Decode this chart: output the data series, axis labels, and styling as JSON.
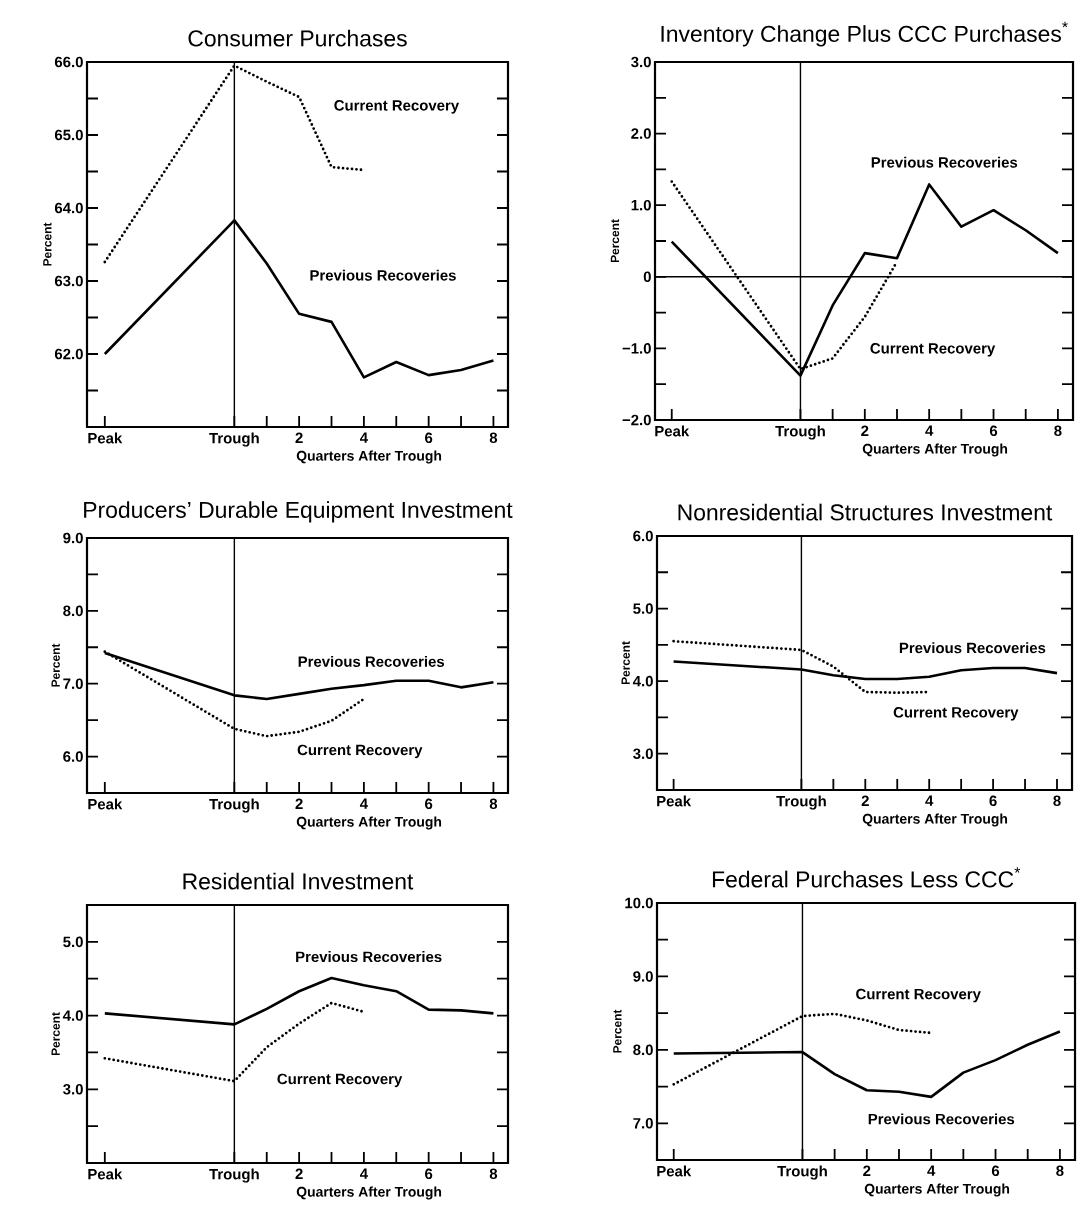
{
  "chart_data": [
    {
      "type": "line",
      "title": "Consumer Purchases",
      "xlabel": "Quarters After Trough",
      "ylabel": "Percent",
      "x": [
        -4,
        0,
        1,
        2,
        3,
        4,
        5,
        6,
        7,
        8
      ],
      "xlim": [
        -4.55,
        8.45
      ],
      "xticks": [
        {
          "value": -4,
          "label": "Peak"
        },
        {
          "value": 0,
          "label": "Trough"
        },
        {
          "value": 1,
          "label": null
        },
        2,
        {
          "value": 3,
          "label": null
        },
        4,
        {
          "value": 5,
          "label": null
        },
        6,
        {
          "value": 7,
          "label": null
        },
        8
      ],
      "ylim": [
        61.0,
        66.0
      ],
      "yticks": [
        {
          "value": 61.5,
          "label": null
        },
        {
          "value": 62,
          "label": "62.0"
        },
        {
          "value": 62.5,
          "label": null
        },
        {
          "value": 63,
          "label": "63.0"
        },
        {
          "value": 63.5,
          "label": null
        },
        {
          "value": 64,
          "label": "64.0"
        },
        {
          "value": 64.5,
          "label": null
        },
        {
          "value": 65,
          "label": "65.0"
        },
        {
          "value": 65.5,
          "label": null
        },
        {
          "value": 66,
          "label": "66.0"
        }
      ],
      "ref_lines": [
        {
          "axis": "x",
          "value": 0
        }
      ],
      "marker": "none",
      "series": [
        {
          "name": "Current Recovery",
          "color": "#000000",
          "line_style": "dotted",
          "values": [
            63.26,
            65.95,
            65.73,
            65.52,
            64.56,
            64.52,
            null,
            null,
            null,
            null
          ]
        },
        {
          "name": "Previous Recoveries",
          "color": "#000000",
          "line_style": "solid",
          "values": [
            62.0,
            63.83,
            63.24,
            62.55,
            62.44,
            61.68,
            61.89,
            61.71,
            61.78,
            61.91
          ]
        }
      ]
    },
    {
      "type": "line",
      "title": "Inventory Change Plus CCC Purchases$^{*}$",
      "xlabel": "Quarters After Trough",
      "ylabel": "Percent",
      "x": [
        -4,
        0,
        1,
        2,
        3,
        4,
        5,
        6,
        7,
        8
      ],
      "xlim": [
        -4.52,
        8.47
      ],
      "xticks": [
        {
          "value": -4,
          "label": "Peak"
        },
        {
          "value": 0,
          "label": "Trough"
        },
        {
          "value": 1,
          "label": null
        },
        2,
        {
          "value": 3,
          "label": null
        },
        4,
        {
          "value": 5,
          "label": null
        },
        6,
        {
          "value": 7,
          "label": null
        },
        8
      ],
      "ylim": [
        -2.0,
        3.0
      ],
      "yticks": [
        {
          "value": -2,
          "label": "−2.0"
        },
        {
          "value": -1.5,
          "label": null
        },
        {
          "value": -1,
          "label": "−1.0"
        },
        {
          "value": -0.5,
          "label": null
        },
        0,
        {
          "value": 0.5,
          "label": null
        },
        {
          "value": 1,
          "label": "1.0"
        },
        {
          "value": 1.5,
          "label": null
        },
        {
          "value": 2,
          "label": "2.0"
        },
        {
          "value": 2.5,
          "label": null
        },
        {
          "value": 3,
          "label": "3.0"
        }
      ],
      "ref_lines": [
        {
          "axis": "x",
          "value": 0
        },
        {
          "axis": "y",
          "value": 0
        }
      ],
      "marker": "none",
      "series": [
        {
          "name": "Current Recovery",
          "color": "#000000",
          "line_style": "dotted",
          "values": [
            1.33,
            -1.29,
            -1.14,
            -0.56,
            0.21,
            null,
            null,
            null,
            null,
            null
          ]
        },
        {
          "name": "Previous Recoveries",
          "color": "#000000",
          "line_style": "solid",
          "values": [
            0.49,
            -1.38,
            -0.4,
            0.33,
            0.26,
            1.29,
            0.7,
            0.93,
            0.65,
            0.33
          ]
        }
      ]
    },
    {
      "type": "line",
      "title": "Producers’ Durable Equipment Investment",
      "xlabel": "Quarters After Trough",
      "ylabel": "Percent",
      "x": [
        -4,
        0,
        1,
        2,
        3,
        4,
        5,
        6,
        7,
        8
      ],
      "xlim": [
        -4.55,
        8.45
      ],
      "xticks": [
        {
          "value": -4,
          "label": "Peak"
        },
        {
          "value": 0,
          "label": "Trough"
        },
        {
          "value": 1,
          "label": null
        },
        2,
        {
          "value": 3,
          "label": null
        },
        4,
        {
          "value": 5,
          "label": null
        },
        6,
        {
          "value": 7,
          "label": null
        },
        8
      ],
      "ylim": [
        5.5,
        9.0
      ],
      "yticks": [
        {
          "value": 6,
          "label": "6.0"
        },
        {
          "value": 6.5,
          "label": null
        },
        {
          "value": 7,
          "label": "7.0"
        },
        {
          "value": 7.5,
          "label": null
        },
        {
          "value": 8,
          "label": "8.0"
        },
        {
          "value": 8.5,
          "label": null
        },
        {
          "value": 9,
          "label": "9.0"
        }
      ],
      "ref_lines": [
        {
          "axis": "x",
          "value": 0
        }
      ],
      "marker": "none",
      "series": [
        {
          "name": "Current Recovery",
          "color": "#000000",
          "line_style": "dotted",
          "values": [
            7.44,
            6.38,
            6.28,
            6.34,
            6.49,
            6.79,
            null,
            null,
            null,
            null
          ]
        },
        {
          "name": "Previous Recoveries",
          "color": "#000000",
          "line_style": "solid",
          "values": [
            7.42,
            6.84,
            6.79,
            6.86,
            6.93,
            6.98,
            7.04,
            7.04,
            6.95,
            7.02
          ]
        }
      ]
    },
    {
      "type": "line",
      "title": "Nonresidential Structures Investment",
      "xlabel": "Quarters After Trough",
      "ylabel": "Percent",
      "x": [
        -4,
        0,
        1,
        2,
        3,
        4,
        5,
        6,
        7,
        8
      ],
      "xlim": [
        -4.52,
        8.47
      ],
      "xticks": [
        {
          "value": -4,
          "label": "Peak"
        },
        {
          "value": 0,
          "label": "Trough"
        },
        {
          "value": 1,
          "label": null
        },
        2,
        {
          "value": 3,
          "label": null
        },
        4,
        {
          "value": 5,
          "label": null
        },
        6,
        {
          "value": 7,
          "label": null
        },
        8
      ],
      "ylim": [
        2.5,
        6.0
      ],
      "yticks": [
        {
          "value": 3,
          "label": "3.0"
        },
        {
          "value": 3.5,
          "label": null
        },
        {
          "value": 4,
          "label": "4.0"
        },
        {
          "value": 4.5,
          "label": null
        },
        {
          "value": 5,
          "label": "5.0"
        },
        {
          "value": 5.5,
          "label": null
        },
        {
          "value": 6,
          "label": "6.0"
        }
      ],
      "ref_lines": [
        {
          "axis": "x",
          "value": 0
        }
      ],
      "marker": "none",
      "series": [
        {
          "name": "Current Recovery",
          "color": "#000000",
          "line_style": "dotted",
          "values": [
            4.55,
            4.43,
            4.2,
            3.85,
            3.84,
            3.85,
            null,
            null,
            null,
            null
          ]
        },
        {
          "name": "Previous Recoveries",
          "color": "#000000",
          "line_style": "solid",
          "values": [
            4.27,
            4.16,
            4.08,
            4.03,
            4.03,
            4.06,
            4.15,
            4.18,
            4.18,
            4.11
          ]
        }
      ]
    },
    {
      "type": "line",
      "title": "Residential Investment",
      "xlabel": "Quarters After Trough",
      "ylabel": "Percent",
      "x": [
        -4,
        0,
        1,
        2,
        3,
        4,
        5,
        6,
        7,
        8
      ],
      "xlim": [
        -4.55,
        8.45
      ],
      "xticks": [
        {
          "value": -4,
          "label": "Peak"
        },
        {
          "value": 0,
          "label": "Trough"
        },
        {
          "value": 1,
          "label": null
        },
        2,
        {
          "value": 3,
          "label": null
        },
        4,
        {
          "value": 5,
          "label": null
        },
        6,
        {
          "value": 7,
          "label": null
        },
        8
      ],
      "ylim": [
        2.0,
        5.5
      ],
      "yticks": [
        {
          "value": 2.5,
          "label": null
        },
        {
          "value": 3,
          "label": "3.0"
        },
        {
          "value": 3.5,
          "label": null
        },
        {
          "value": 4,
          "label": "4.0"
        },
        {
          "value": 4.5,
          "label": null
        },
        {
          "value": 5,
          "label": "5.0"
        }
      ],
      "ref_lines": [
        {
          "axis": "x",
          "value": 0
        }
      ],
      "marker": "none",
      "series": [
        {
          "name": "Current Recovery",
          "color": "#000000",
          "line_style": "dotted",
          "values": [
            3.42,
            3.11,
            3.57,
            3.89,
            4.17,
            4.05,
            null,
            null,
            null,
            null
          ]
        },
        {
          "name": "Previous Recoveries",
          "color": "#000000",
          "line_style": "solid",
          "values": [
            4.03,
            3.88,
            4.09,
            4.33,
            4.51,
            4.41,
            4.33,
            4.08,
            4.07,
            4.03
          ]
        }
      ]
    },
    {
      "type": "line",
      "title": "Federal Purchases Less CCC$^{*}$",
      "xlabel": "Quarters After Trough",
      "ylabel": "Percent",
      "x": [
        -4,
        0,
        1,
        2,
        3,
        4,
        5,
        6,
        7,
        8
      ],
      "xlim": [
        -4.52,
        8.47
      ],
      "xticks": [
        {
          "value": -4,
          "label": "Peak"
        },
        {
          "value": 0,
          "label": "Trough"
        },
        {
          "value": 1,
          "label": null
        },
        2,
        {
          "value": 3,
          "label": null
        },
        4,
        {
          "value": 5,
          "label": null
        },
        6,
        {
          "value": 7,
          "label": null
        },
        8
      ],
      "ylim": [
        6.5,
        10.0
      ],
      "yticks": [
        {
          "value": 7,
          "label": "7.0"
        },
        {
          "value": 7.5,
          "label": null
        },
        {
          "value": 8,
          "label": "8.0"
        },
        {
          "value": 8.5,
          "label": null
        },
        {
          "value": 9,
          "label": "9.0"
        },
        {
          "value": 9.5,
          "label": null
        },
        {
          "value": 10,
          "label": "10.0"
        }
      ],
      "ref_lines": [
        {
          "axis": "x",
          "value": 0
        }
      ],
      "marker": "none",
      "series": [
        {
          "name": "Current Recovery",
          "color": "#000000",
          "line_style": "dotted",
          "values": [
            7.53,
            8.46,
            8.49,
            8.4,
            8.27,
            8.23,
            null,
            null,
            null,
            null
          ]
        },
        {
          "name": "Previous Recoveries",
          "color": "#000000",
          "line_style": "solid",
          "values": [
            7.95,
            7.97,
            7.67,
            7.45,
            7.43,
            7.36,
            7.69,
            7.86,
            8.07,
            8.25
          ]
        }
      ]
    }
  ]
}
